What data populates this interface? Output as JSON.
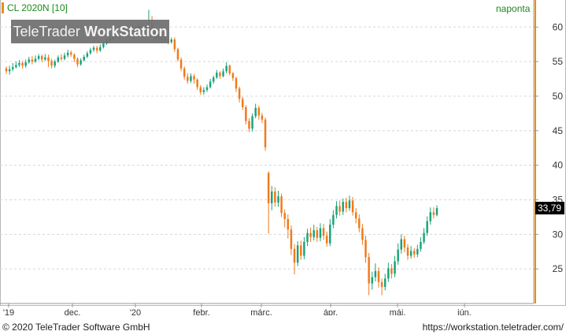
{
  "header": {
    "symbol": "CL 2020N [10]",
    "period": "naponta",
    "watermark_brand": "TeleTrader",
    "watermark_product": "WorkStation"
  },
  "footer": {
    "copyright": "© 2020 TeleTrader Software GmbH",
    "url": "https://workstation.teletrader.com/"
  },
  "colors": {
    "up": "#1aa37a",
    "down": "#f07a1a",
    "grid": "#d8d8d8",
    "axis": "#999999"
  },
  "chart_data": {
    "type": "candlestick",
    "title": "",
    "xlabel": "",
    "ylabel": "",
    "ylim": [
      20,
      63
    ],
    "y_ticks": [
      25,
      30,
      35,
      40,
      45,
      50,
      55,
      60
    ],
    "x_tick_labels": [
      "'19",
      "dec.",
      "'20",
      "febr.",
      "márc.",
      "ápr.",
      "máj.",
      "jún."
    ],
    "last_price": "33,79",
    "grid": true,
    "series": [
      {
        "values": [
          [
            54,
            53.6,
            54.3,
            53.2
          ],
          [
            53.6,
            53.9,
            54.4,
            53.1
          ],
          [
            53.9,
            54.2,
            54.8,
            53.6
          ],
          [
            54.2,
            54.5,
            55.0,
            54.0
          ],
          [
            54.5,
            54.8,
            55.2,
            54.2
          ],
          [
            54.8,
            54.4,
            55.1,
            54.0
          ],
          [
            54.4,
            54.9,
            55.3,
            54.1
          ],
          [
            54.9,
            55.3,
            55.7,
            54.7
          ],
          [
            55.3,
            55.0,
            55.8,
            54.6
          ],
          [
            55.0,
            55.4,
            55.9,
            54.8
          ],
          [
            55.4,
            55.8,
            56.1,
            55.2
          ],
          [
            55.8,
            55.3,
            56.0,
            54.9
          ],
          [
            55.3,
            55.6,
            56.1,
            55.1
          ],
          [
            55.6,
            55.1,
            56.0,
            54.2
          ],
          [
            55.1,
            54.4,
            55.4,
            54.0
          ],
          [
            54.4,
            55.0,
            55.3,
            54.1
          ],
          [
            55.0,
            55.6,
            55.9,
            54.8
          ],
          [
            55.6,
            55.4,
            56.1,
            55.1
          ],
          [
            55.4,
            55.9,
            56.3,
            55.2
          ],
          [
            55.9,
            56.3,
            56.7,
            55.6
          ],
          [
            56.3,
            56.0,
            56.6,
            55.7
          ],
          [
            56.0,
            55.4,
            56.2,
            54.9
          ],
          [
            55.4,
            54.6,
            55.6,
            54.2
          ],
          [
            54.6,
            55.2,
            55.5,
            54.4
          ],
          [
            55.2,
            55.7,
            56.0,
            55.0
          ],
          [
            55.7,
            56.2,
            56.5,
            55.5
          ],
          [
            56.2,
            56.7,
            57.0,
            56.0
          ],
          [
            56.7,
            57.0,
            57.3,
            56.4
          ],
          [
            57.0,
            56.6,
            57.3,
            56.2
          ],
          [
            56.6,
            57.1,
            57.5,
            56.4
          ],
          [
            57.1,
            57.6,
            57.9,
            56.9
          ],
          [
            57.6,
            58.0,
            58.3,
            57.4
          ],
          [
            58.0,
            58.3,
            58.7,
            57.8
          ],
          [
            58.3,
            58.6,
            58.9,
            58.1
          ],
          [
            58.6,
            58.8,
            59.2,
            58.3
          ],
          [
            58.8,
            58.6,
            59.1,
            58.2
          ],
          [
            58.6,
            59.0,
            59.4,
            58.4
          ],
          [
            59.0,
            59.3,
            59.7,
            58.8
          ],
          [
            59.3,
            59.5,
            59.9,
            59.0
          ],
          [
            59.5,
            59.2,
            60.3,
            58.9
          ],
          [
            59.2,
            59.8,
            60.1,
            59.0
          ],
          [
            59.8,
            60.1,
            60.5,
            59.5
          ],
          [
            60.1,
            59.7,
            60.8,
            59.4
          ],
          [
            59.7,
            59.9,
            60.3,
            59.4
          ],
          [
            59.9,
            60.2,
            62.5,
            58.7
          ],
          [
            60.2,
            59.1,
            61.6,
            58.6
          ],
          [
            59.1,
            58.3,
            59.5,
            58.0
          ],
          [
            58.3,
            58.6,
            59.0,
            58.1
          ],
          [
            58.6,
            58.1,
            58.8,
            57.7
          ],
          [
            58.1,
            58.3,
            58.7,
            57.8
          ],
          [
            58.3,
            57.8,
            58.6,
            57.5
          ],
          [
            57.8,
            58.2,
            58.5,
            57.6
          ],
          [
            58.2,
            56.8,
            58.5,
            56.4
          ],
          [
            56.8,
            55.3,
            57.0,
            55.0
          ],
          [
            55.3,
            54.0,
            55.6,
            53.6
          ],
          [
            54.0,
            52.8,
            54.3,
            52.4
          ],
          [
            52.8,
            52.2,
            53.3,
            51.8
          ],
          [
            52.2,
            52.9,
            53.3,
            51.9
          ],
          [
            52.9,
            52.4,
            53.2,
            51.8
          ],
          [
            52.4,
            51.3,
            52.6,
            50.9
          ],
          [
            51.3,
            50.6,
            51.6,
            50.2
          ],
          [
            50.6,
            50.9,
            51.3,
            50.2
          ],
          [
            50.9,
            51.3,
            51.7,
            50.6
          ],
          [
            51.3,
            52.1,
            52.5,
            51.1
          ],
          [
            52.1,
            52.7,
            53.0,
            51.8
          ],
          [
            52.7,
            53.4,
            53.8,
            52.5
          ],
          [
            53.4,
            52.9,
            53.6,
            52.5
          ],
          [
            52.9,
            53.6,
            54.0,
            52.7
          ],
          [
            53.6,
            54.4,
            54.9,
            53.3
          ],
          [
            54.4,
            53.3,
            54.6,
            53.0
          ],
          [
            53.3,
            52.6,
            53.5,
            52.2
          ],
          [
            52.6,
            51.1,
            52.8,
            50.6
          ],
          [
            51.1,
            49.6,
            51.4,
            49.1
          ],
          [
            49.6,
            48.4,
            49.9,
            48.0
          ],
          [
            48.4,
            46.4,
            48.7,
            45.9
          ],
          [
            46.4,
            45.3,
            46.8,
            44.8
          ],
          [
            45.3,
            47.1,
            47.5,
            44.9
          ],
          [
            47.1,
            48.3,
            48.9,
            46.8
          ],
          [
            48.3,
            47.2,
            48.6,
            46.6
          ],
          [
            47.2,
            46.6,
            47.6,
            46.1
          ],
          [
            46.6,
            42.6,
            46.9,
            42.1
          ],
          [
            38.9,
            34.5,
            39.1,
            30.1
          ],
          [
            34.5,
            36.2,
            37.0,
            33.5
          ],
          [
            36.2,
            34.6,
            36.8,
            34.0
          ],
          [
            34.6,
            35.5,
            36.3,
            34.0
          ],
          [
            35.5,
            33.1,
            35.9,
            32.5
          ],
          [
            33.1,
            32.2,
            33.6,
            31.0
          ],
          [
            32.2,
            30.7,
            32.9,
            29.4
          ],
          [
            30.7,
            27.9,
            31.3,
            27.0
          ],
          [
            27.9,
            25.9,
            28.6,
            24.2
          ],
          [
            25.9,
            28.4,
            29.0,
            25.4
          ],
          [
            28.4,
            26.9,
            29.1,
            26.3
          ],
          [
            26.9,
            28.9,
            29.6,
            26.4
          ],
          [
            28.9,
            30.2,
            30.8,
            28.3
          ],
          [
            30.2,
            29.6,
            31.0,
            28.9
          ],
          [
            29.6,
            30.6,
            31.4,
            29.1
          ],
          [
            30.6,
            29.5,
            31.1,
            28.9
          ],
          [
            29.5,
            30.9,
            31.6,
            29.0
          ],
          [
            30.9,
            29.8,
            31.5,
            29.2
          ],
          [
            29.8,
            28.7,
            30.4,
            28.2
          ],
          [
            28.7,
            31.4,
            32.2,
            28.3
          ],
          [
            31.4,
            32.8,
            33.5,
            30.9
          ],
          [
            32.8,
            34.1,
            34.8,
            32.3
          ],
          [
            34.1,
            33.3,
            34.9,
            32.7
          ],
          [
            33.3,
            34.7,
            35.2,
            32.8
          ],
          [
            34.7,
            33.8,
            35.3,
            33.2
          ],
          [
            33.8,
            34.9,
            35.6,
            33.4
          ],
          [
            34.9,
            33.2,
            35.4,
            32.7
          ],
          [
            33.2,
            32.3,
            33.8,
            31.6
          ],
          [
            32.3,
            30.9,
            32.9,
            30.3
          ],
          [
            30.9,
            29.2,
            31.5,
            28.5
          ],
          [
            29.2,
            26.7,
            29.8,
            25.9
          ],
          [
            26.7,
            22.9,
            27.3,
            21.2
          ],
          [
            22.9,
            23.8,
            24.6,
            22.0
          ],
          [
            23.8,
            24.7,
            25.8,
            23.2
          ],
          [
            24.7,
            23.1,
            25.2,
            22.3
          ],
          [
            23.1,
            22.4,
            23.6,
            21.2
          ],
          [
            22.4,
            23.6,
            24.3,
            21.9
          ],
          [
            23.6,
            25.1,
            25.9,
            23.1
          ],
          [
            25.1,
            24.3,
            25.7,
            23.6
          ],
          [
            24.3,
            26.1,
            26.9,
            23.8
          ],
          [
            26.1,
            27.8,
            28.7,
            25.6
          ],
          [
            27.8,
            29.3,
            30.0,
            27.2
          ],
          [
            29.3,
            28.1,
            29.8,
            27.4
          ],
          [
            28.1,
            26.9,
            28.6,
            26.3
          ],
          [
            26.9,
            27.6,
            28.3,
            26.5
          ],
          [
            27.6,
            27.1,
            28.0,
            26.6
          ],
          [
            27.1,
            27.9,
            28.5,
            26.7
          ],
          [
            27.9,
            28.9,
            29.6,
            27.5
          ],
          [
            28.9,
            30.2,
            30.9,
            28.6
          ],
          [
            30.2,
            31.9,
            32.6,
            29.8
          ],
          [
            31.9,
            33.2,
            33.9,
            31.4
          ],
          [
            33.2,
            32.8,
            33.9,
            32.3
          ],
          [
            32.8,
            33.8,
            34.2,
            32.6
          ]
        ]
      }
    ]
  }
}
